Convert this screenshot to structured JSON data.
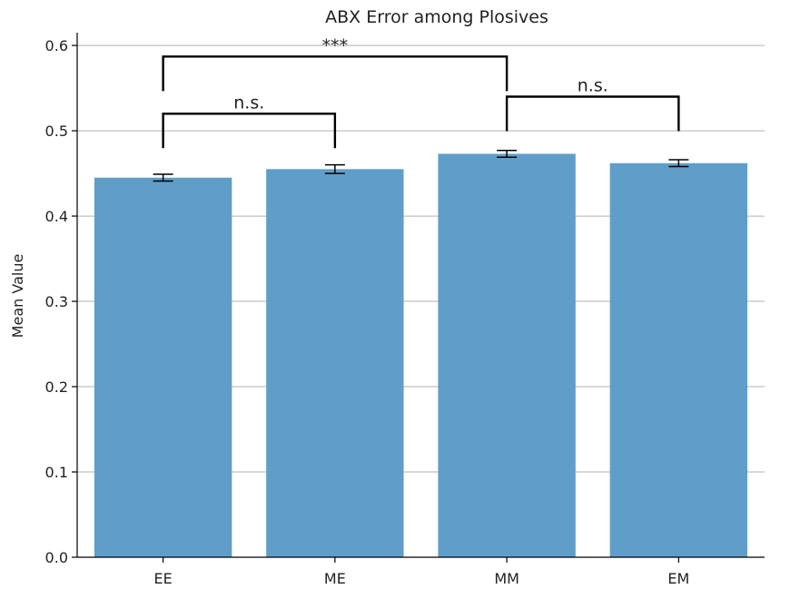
{
  "chart_data": {
    "type": "bar",
    "title": "ABX Error among Plosives",
    "xlabel": "",
    "ylabel": "Mean Value",
    "categories": [
      "EE",
      "ME",
      "MM",
      "EM"
    ],
    "values": [
      0.445,
      0.455,
      0.473,
      0.462
    ],
    "errors": [
      0.004,
      0.005,
      0.004,
      0.004
    ],
    "ylim": [
      0,
      0.615
    ],
    "yticks": [
      0.0,
      0.1,
      0.2,
      0.3,
      0.4,
      0.5,
      0.6
    ],
    "ytick_labels": [
      "0.0",
      "0.1",
      "0.2",
      "0.3",
      "0.4",
      "0.5",
      "0.6"
    ],
    "grid": "y",
    "bar_color": "#5f9ec8",
    "annotations": [
      {
        "from": "EE",
        "to": "ME",
        "level": 0.52,
        "label": "n.s."
      },
      {
        "from": "MM",
        "to": "EM",
        "level": 0.54,
        "label": "n.s."
      },
      {
        "from": "EE",
        "to": "MM",
        "level": 0.587,
        "label": "***"
      }
    ]
  }
}
